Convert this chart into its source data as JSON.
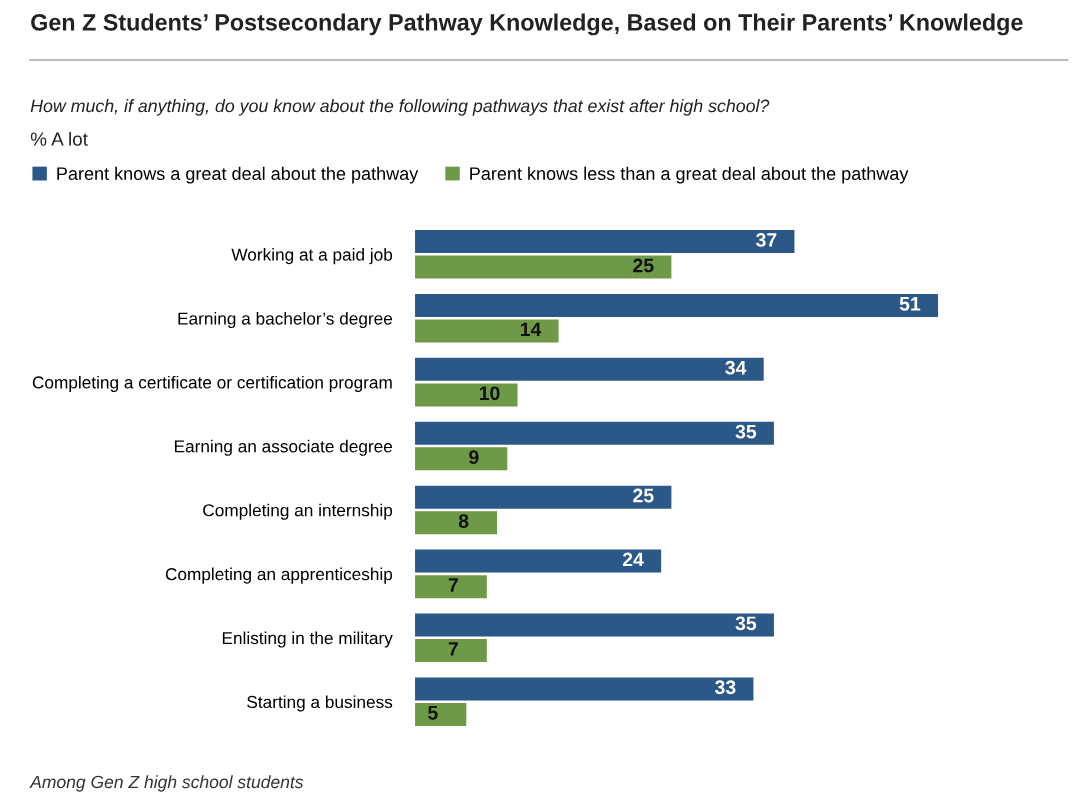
{
  "chart_data": {
    "type": "bar",
    "orientation": "horizontal",
    "title": "Gen Z Students’ Postsecondary Pathway Knowledge, Based on Their Parents’ Knowledge",
    "subtitle": "How much, if anything, do you know about the following pathways that exist after high school?",
    "xlabel": "% A lot",
    "categories": [
      "Working at a paid job",
      "Earning a bachelor’s degree",
      "Completing a certificate or certification program",
      "Earning an associate degree",
      "Completing an internship",
      "Completing an apprenticeship",
      "Enlisting in the military",
      "Starting a business"
    ],
    "series": [
      {
        "name": "Parent knows a great deal about the pathway",
        "color": "#2b5887",
        "values": [
          37,
          51,
          34,
          35,
          25,
          24,
          35,
          33
        ]
      },
      {
        "name": "Parent knows less than a great deal about the pathway",
        "color": "#6e9a48",
        "values": [
          25,
          14,
          10,
          9,
          8,
          7,
          7,
          5
        ]
      }
    ],
    "data_labels": true,
    "legend": "top left",
    "grid": false,
    "annotations": [
      "Among Gen Z high school students"
    ]
  }
}
